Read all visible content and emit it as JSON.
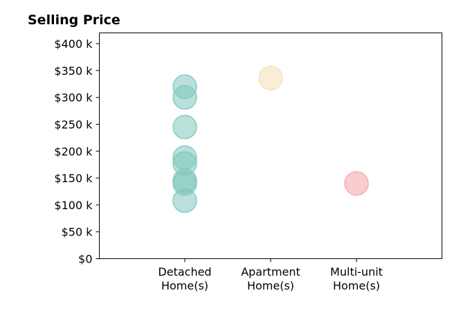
{
  "chart_data": {
    "type": "scatter",
    "title": "Selling Price",
    "xlabel": "",
    "ylabel": "",
    "ylim": [
      0,
      420
    ],
    "y_unit": "thousand USD",
    "y_ticks": [
      {
        "value": 0,
        "label": "$0"
      },
      {
        "value": 50,
        "label": "$50 k"
      },
      {
        "value": 100,
        "label": "$100 k"
      },
      {
        "value": 150,
        "label": "$150 k"
      },
      {
        "value": 200,
        "label": "$200 k"
      },
      {
        "value": 250,
        "label": "$250 k"
      },
      {
        "value": 300,
        "label": "$300 k"
      },
      {
        "value": 350,
        "label": "$350 k"
      },
      {
        "value": 400,
        "label": "$400 k"
      }
    ],
    "categories": [
      {
        "label_lines": [
          "Detached",
          "Home(s)"
        ],
        "color": "#7fc6bc"
      },
      {
        "label_lines": [
          "Apartment",
          "Home(s)"
        ],
        "color": "#f5deb3"
      },
      {
        "label_lines": [
          "Multi-unit",
          "Home(s)"
        ],
        "color": "#f4a3a8"
      }
    ],
    "series": [
      {
        "category_index": 0,
        "values": [
          320,
          300,
          245,
          188,
          177,
          145,
          140,
          108
        ]
      },
      {
        "category_index": 1,
        "values": [
          336
        ]
      },
      {
        "category_index": 2,
        "values": [
          140
        ]
      }
    ],
    "grid": false,
    "legend": "none"
  }
}
